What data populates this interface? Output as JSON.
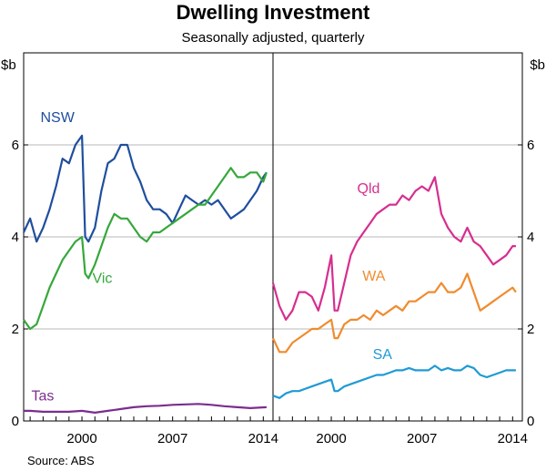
{
  "title": "Dwelling Investment",
  "subtitle": "Seasonally adjusted, quarterly",
  "source": "Source:    ABS",
  "chart_data": {
    "type": "line",
    "unit": "$b",
    "x_range": [
      1995.5,
      2014.75
    ],
    "x_ticks": [
      2000,
      2007,
      2014
    ],
    "ylim": [
      0,
      8
    ],
    "y_ticks": [
      0,
      2,
      4,
      6
    ],
    "grid": true,
    "panels": [
      {
        "id": "left",
        "series": [
          {
            "name": "NSW",
            "color": "#1f4e9e",
            "x": [
              1995.5,
              1996.0,
              1996.5,
              1997.0,
              1997.5,
              1998.0,
              1998.5,
              1999.0,
              1999.5,
              2000.0,
              2000.25,
              2000.5,
              2001.0,
              2001.5,
              2002.0,
              2002.5,
              2003.0,
              2003.5,
              2004.0,
              2004.5,
              2005.0,
              2005.5,
              2006.0,
              2006.5,
              2007.0,
              2007.5,
              2008.0,
              2008.5,
              2009.0,
              2009.5,
              2010.0,
              2010.5,
              2011.0,
              2011.5,
              2012.0,
              2012.5,
              2013.0,
              2013.5,
              2014.0,
              2014.25
            ],
            "y": [
              4.1,
              4.4,
              3.9,
              4.2,
              4.6,
              5.1,
              5.7,
              5.6,
              6.0,
              6.2,
              4.0,
              3.9,
              4.2,
              5.0,
              5.6,
              5.7,
              6.0,
              6.0,
              5.5,
              5.2,
              4.8,
              4.6,
              4.6,
              4.5,
              4.3,
              4.6,
              4.9,
              4.8,
              4.7,
              4.8,
              4.7,
              4.8,
              4.6,
              4.4,
              4.5,
              4.6,
              4.8,
              5.0,
              5.3,
              5.4
            ]
          },
          {
            "name": "Vic",
            "color": "#35a83a",
            "x": [
              1995.5,
              1996.0,
              1996.5,
              1997.0,
              1997.5,
              1998.0,
              1998.5,
              1999.0,
              1999.5,
              2000.0,
              2000.25,
              2000.5,
              2001.0,
              2001.5,
              2002.0,
              2002.5,
              2003.0,
              2003.5,
              2004.0,
              2004.5,
              2005.0,
              2005.5,
              2006.0,
              2006.5,
              2007.0,
              2007.5,
              2008.0,
              2008.5,
              2009.0,
              2009.5,
              2010.0,
              2010.5,
              2011.0,
              2011.5,
              2012.0,
              2012.5,
              2013.0,
              2013.5,
              2014.0,
              2014.25
            ],
            "y": [
              2.2,
              2.0,
              2.1,
              2.5,
              2.9,
              3.2,
              3.5,
              3.7,
              3.9,
              4.0,
              3.2,
              3.1,
              3.4,
              3.8,
              4.2,
              4.5,
              4.4,
              4.4,
              4.2,
              4.0,
              3.9,
              4.1,
              4.1,
              4.2,
              4.3,
              4.4,
              4.5,
              4.6,
              4.7,
              4.7,
              4.9,
              5.1,
              5.3,
              5.5,
              5.3,
              5.3,
              5.4,
              5.4,
              5.2,
              5.4
            ]
          },
          {
            "name": "Tas",
            "color": "#7b2d8e",
            "x": [
              1995.5,
              1996.0,
              1997.0,
              1998.0,
              1999.0,
              2000.0,
              2001.0,
              2002.0,
              2003.0,
              2004.0,
              2005.0,
              2006.0,
              2007.0,
              2008.0,
              2009.0,
              2010.0,
              2011.0,
              2012.0,
              2013.0,
              2014.25
            ],
            "y": [
              0.22,
              0.22,
              0.2,
              0.2,
              0.2,
              0.22,
              0.18,
              0.22,
              0.26,
              0.3,
              0.32,
              0.33,
              0.35,
              0.36,
              0.37,
              0.35,
              0.32,
              0.3,
              0.28,
              0.3
            ]
          }
        ]
      },
      {
        "id": "right",
        "series": [
          {
            "name": "Qld",
            "color": "#d62e8f",
            "x": [
              1995.5,
              1996.0,
              1996.5,
              1997.0,
              1997.5,
              1998.0,
              1998.5,
              1999.0,
              1999.5,
              2000.0,
              2000.25,
              2000.5,
              2001.0,
              2001.5,
              2002.0,
              2002.5,
              2003.0,
              2003.5,
              2004.0,
              2004.5,
              2005.0,
              2005.5,
              2006.0,
              2006.5,
              2007.0,
              2007.5,
              2008.0,
              2008.5,
              2009.0,
              2009.5,
              2010.0,
              2010.5,
              2011.0,
              2011.5,
              2012.0,
              2012.5,
              2013.0,
              2013.5,
              2014.0,
              2014.25
            ],
            "y": [
              3.0,
              2.5,
              2.2,
              2.4,
              2.8,
              2.8,
              2.7,
              2.4,
              2.9,
              3.6,
              2.4,
              2.4,
              3.0,
              3.6,
              3.9,
              4.1,
              4.3,
              4.5,
              4.6,
              4.7,
              4.7,
              4.9,
              4.8,
              5.0,
              5.1,
              5.0,
              5.3,
              4.5,
              4.2,
              4.0,
              3.9,
              4.2,
              3.9,
              3.8,
              3.6,
              3.4,
              3.5,
              3.6,
              3.8,
              3.8
            ]
          },
          {
            "name": "WA",
            "color": "#f08b2d",
            "x": [
              1995.5,
              1996.0,
              1996.5,
              1997.0,
              1997.5,
              1998.0,
              1998.5,
              1999.0,
              1999.5,
              2000.0,
              2000.25,
              2000.5,
              2001.0,
              2001.5,
              2002.0,
              2002.5,
              2003.0,
              2003.5,
              2004.0,
              2004.5,
              2005.0,
              2005.5,
              2006.0,
              2006.5,
              2007.0,
              2007.5,
              2008.0,
              2008.5,
              2009.0,
              2009.5,
              2010.0,
              2010.5,
              2011.0,
              2011.5,
              2012.0,
              2012.5,
              2013.0,
              2013.5,
              2014.0,
              2014.25
            ],
            "y": [
              1.8,
              1.5,
              1.5,
              1.7,
              1.8,
              1.9,
              2.0,
              2.0,
              2.1,
              2.2,
              1.8,
              1.8,
              2.1,
              2.2,
              2.2,
              2.3,
              2.2,
              2.4,
              2.3,
              2.4,
              2.5,
              2.4,
              2.6,
              2.6,
              2.7,
              2.8,
              2.8,
              3.0,
              2.8,
              2.8,
              2.9,
              3.2,
              2.8,
              2.4,
              2.5,
              2.6,
              2.7,
              2.8,
              2.9,
              2.8
            ]
          },
          {
            "name": "SA",
            "color": "#1f9ad6",
            "x": [
              1995.5,
              1996.0,
              1996.5,
              1997.0,
              1997.5,
              1998.0,
              1998.5,
              1999.0,
              1999.5,
              2000.0,
              2000.25,
              2000.5,
              2001.0,
              2001.5,
              2002.0,
              2002.5,
              2003.0,
              2003.5,
              2004.0,
              2004.5,
              2005.0,
              2005.5,
              2006.0,
              2006.5,
              2007.0,
              2007.5,
              2008.0,
              2008.5,
              2009.0,
              2009.5,
              2010.0,
              2010.5,
              2011.0,
              2011.5,
              2012.0,
              2012.5,
              2013.0,
              2013.5,
              2014.0,
              2014.25
            ],
            "y": [
              0.55,
              0.5,
              0.6,
              0.65,
              0.65,
              0.7,
              0.75,
              0.8,
              0.85,
              0.9,
              0.65,
              0.65,
              0.75,
              0.8,
              0.85,
              0.9,
              0.95,
              1.0,
              1.0,
              1.05,
              1.1,
              1.1,
              1.15,
              1.1,
              1.1,
              1.1,
              1.2,
              1.1,
              1.15,
              1.1,
              1.1,
              1.2,
              1.15,
              1.0,
              0.95,
              1.0,
              1.05,
              1.1,
              1.1,
              1.1
            ]
          }
        ]
      }
    ],
    "labels": [
      {
        "text": "NSW",
        "panel": "left",
        "x": 1996.8,
        "y": 6.5,
        "color": "#1f4e9e"
      },
      {
        "text": "Vic",
        "panel": "left",
        "x": 2000.8,
        "y": 3.0,
        "color": "#35a83a"
      },
      {
        "text": "Tas",
        "panel": "left",
        "x": 1996.1,
        "y": 0.45,
        "color": "#7b2d8e"
      },
      {
        "text": "Qld",
        "panel": "right",
        "x": 2002.0,
        "y": 4.95,
        "color": "#d62e8f"
      },
      {
        "text": "WA",
        "panel": "right",
        "x": 2002.4,
        "y": 3.05,
        "color": "#f08b2d"
      },
      {
        "text": "SA",
        "panel": "right",
        "x": 2003.2,
        "y": 1.35,
        "color": "#1f9ad6"
      }
    ]
  }
}
